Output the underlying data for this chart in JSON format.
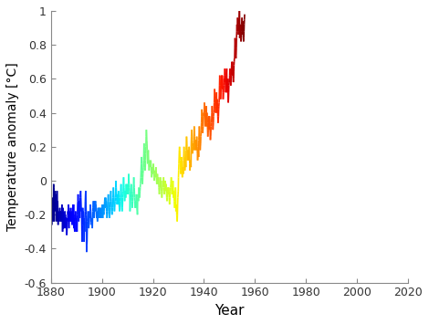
{
  "xlabel": "Year",
  "ylabel": "Temperature anomaly [°C]",
  "xlim": [
    1880,
    2020
  ],
  "ylim": [
    -0.6,
    1.0
  ],
  "yticks": [
    -0.6,
    -0.4,
    -0.2,
    0,
    0.2,
    0.4,
    0.6,
    0.8,
    1
  ],
  "ytick_labels": [
    "-0.6",
    "-0.4",
    "-0.2",
    "0",
    "0.2",
    "0.4",
    "0.6",
    "0.8",
    "1"
  ],
  "xticks": [
    1880,
    1900,
    1920,
    1940,
    1960,
    1980,
    2000,
    2020
  ],
  "linewidth": 1.2,
  "background_color": "#ffffff",
  "monthly_anomalies": [
    -0.2,
    -0.12,
    -0.1,
    -0.18,
    -0.26,
    -0.16,
    -0.12,
    -0.14,
    -0.1,
    -0.22,
    -0.24,
    -0.16,
    -0.14,
    -0.02,
    -0.04,
    -0.14,
    -0.24,
    -0.12,
    -0.08,
    -0.12,
    -0.06,
    -0.12,
    -0.18,
    -0.16,
    -0.12,
    -0.08,
    -0.16,
    -0.24,
    -0.16,
    -0.06,
    -0.12,
    -0.14,
    -0.12,
    -0.2,
    -0.26,
    -0.18,
    -0.22,
    -0.2,
    -0.22,
    -0.24,
    -0.22,
    -0.18,
    -0.16,
    -0.22,
    -0.18,
    -0.22,
    -0.24,
    -0.2,
    -0.18,
    -0.2,
    -0.24,
    -0.18,
    -0.14,
    -0.18,
    -0.22,
    -0.3,
    -0.24,
    -0.16,
    -0.18,
    -0.28,
    -0.28,
    -0.22,
    -0.26,
    -0.28,
    -0.26,
    -0.22,
    -0.18,
    -0.26,
    -0.2,
    -0.28,
    -0.24,
    -0.22,
    -0.22,
    -0.26,
    -0.32,
    -0.32,
    -0.28,
    -0.24,
    -0.22,
    -0.24,
    -0.18,
    -0.2,
    -0.16,
    -0.14,
    -0.26,
    -0.28,
    -0.24,
    -0.22,
    -0.18,
    -0.22,
    -0.2,
    -0.24,
    -0.18,
    -0.16,
    -0.18,
    -0.24,
    -0.2,
    -0.18,
    -0.22,
    -0.2,
    -0.26,
    -0.22,
    -0.16,
    -0.18,
    -0.14,
    -0.18,
    -0.22,
    -0.14,
    -0.28,
    -0.22,
    -0.24,
    -0.28,
    -0.3,
    -0.24,
    -0.2,
    -0.22,
    -0.18,
    -0.22,
    -0.26,
    -0.3,
    -0.26,
    -0.22,
    -0.28,
    -0.3,
    -0.24,
    -0.2,
    -0.14,
    -0.12,
    -0.08,
    -0.12,
    -0.18,
    -0.24,
    -0.2,
    -0.14,
    -0.12,
    -0.16,
    -0.22,
    -0.16,
    -0.1,
    -0.08,
    -0.06,
    -0.1,
    -0.14,
    -0.18,
    -0.16,
    -0.22,
    -0.3,
    -0.36,
    -0.26,
    -0.2,
    -0.16,
    -0.2,
    -0.18,
    -0.22,
    -0.26,
    -0.22,
    -0.36,
    -0.28,
    -0.24,
    -0.3,
    -0.22,
    -0.18,
    -0.12,
    -0.08,
    -0.06,
    -0.14,
    -0.2,
    -0.28,
    -0.42,
    -0.38,
    -0.36,
    -0.28,
    -0.24,
    -0.22,
    -0.2,
    -0.18,
    -0.22,
    -0.26,
    -0.28,
    -0.26,
    -0.26,
    -0.22,
    -0.18,
    -0.2,
    -0.22,
    -0.18,
    -0.14,
    -0.18,
    -0.2,
    -0.24,
    -0.22,
    -0.26,
    -0.26,
    -0.22,
    -0.24,
    -0.28,
    -0.22,
    -0.18,
    -0.16,
    -0.14,
    -0.12,
    -0.16,
    -0.18,
    -0.22,
    -0.16,
    -0.14,
    -0.12,
    -0.14,
    -0.18,
    -0.14,
    -0.12,
    -0.16,
    -0.14,
    -0.18,
    -0.2,
    -0.22,
    -0.22,
    -0.18,
    -0.22,
    -0.24,
    -0.22,
    -0.18,
    -0.16,
    -0.2,
    -0.22,
    -0.18,
    -0.16,
    -0.18,
    -0.18,
    -0.16,
    -0.2,
    -0.22,
    -0.2,
    -0.18,
    -0.16,
    -0.18,
    -0.2,
    -0.22,
    -0.2,
    -0.16,
    -0.18,
    -0.16,
    -0.14,
    -0.18,
    -0.22,
    -0.18,
    -0.14,
    -0.16,
    -0.18,
    -0.2,
    -0.18,
    -0.14,
    -0.14,
    -0.12,
    -0.1,
    -0.12,
    -0.16,
    -0.12,
    -0.1,
    -0.14,
    -0.12,
    -0.16,
    -0.18,
    -0.2,
    -0.22,
    -0.2,
    -0.18,
    -0.14,
    -0.12,
    -0.1,
    -0.08,
    -0.12,
    -0.14,
    -0.18,
    -0.2,
    -0.22,
    -0.22,
    -0.2,
    -0.16,
    -0.14,
    -0.12,
    -0.08,
    -0.06,
    -0.1,
    -0.12,
    -0.16,
    -0.18,
    -0.2,
    -0.2,
    -0.18,
    -0.16,
    -0.14,
    -0.1,
    -0.08,
    -0.04,
    -0.08,
    -0.1,
    -0.14,
    -0.16,
    -0.18,
    -0.16,
    -0.14,
    -0.12,
    -0.1,
    -0.08,
    -0.04,
    0.0,
    -0.04,
    -0.06,
    -0.1,
    -0.12,
    -0.14,
    -0.12,
    -0.1,
    -0.08,
    -0.1,
    -0.14,
    -0.1,
    -0.06,
    -0.08,
    -0.1,
    -0.14,
    -0.16,
    -0.18,
    -0.18,
    -0.16,
    -0.12,
    -0.1,
    -0.08,
    -0.04,
    -0.02,
    -0.06,
    -0.1,
    -0.14,
    -0.16,
    -0.18,
    -0.16,
    -0.14,
    -0.1,
    -0.08,
    -0.06,
    -0.02,
    0.02,
    -0.02,
    -0.04,
    -0.08,
    -0.1,
    -0.12,
    -0.1,
    -0.08,
    -0.06,
    -0.08,
    -0.1,
    -0.06,
    -0.02,
    -0.04,
    -0.06,
    -0.08,
    -0.06,
    -0.04,
    -0.02,
    -0.04,
    -0.06,
    -0.08,
    -0.06,
    -0.02,
    0.04,
    0.0,
    -0.02,
    -0.04,
    -0.06,
    -0.08,
    -0.18,
    -0.16,
    -0.12,
    -0.1,
    -0.08,
    -0.04,
    -0.02,
    -0.06,
    -0.08,
    -0.12,
    -0.14,
    -0.16,
    -0.14,
    -0.12,
    -0.1,
    -0.08,
    -0.06,
    -0.02,
    0.02,
    -0.02,
    -0.04,
    -0.08,
    -0.1,
    -0.12,
    -0.16,
    -0.14,
    -0.12,
    -0.14,
    -0.16,
    -0.12,
    -0.08,
    -0.1,
    -0.12,
    -0.16,
    -0.18,
    -0.2,
    -0.12,
    -0.1,
    -0.08,
    -0.1,
    -0.12,
    -0.08,
    -0.04,
    -0.06,
    -0.08,
    -0.1,
    -0.08,
    -0.06,
    -0.04,
    -0.02,
    0.0,
    0.02,
    0.06,
    0.1,
    0.14,
    0.1,
    0.06,
    0.02,
    0.0,
    -0.02,
    0.02,
    0.04,
    0.06,
    0.08,
    0.12,
    0.16,
    0.22,
    0.18,
    0.14,
    0.1,
    0.08,
    0.06,
    0.08,
    0.12,
    0.16,
    0.2,
    0.26,
    0.3,
    0.28,
    0.24,
    0.22,
    0.18,
    0.14,
    0.1,
    0.14,
    0.16,
    0.18,
    0.14,
    0.1,
    0.08,
    0.06,
    0.08,
    0.1,
    0.12,
    0.1,
    0.08,
    0.08,
    0.1,
    0.12,
    0.1,
    0.06,
    0.04,
    0.02,
    0.04,
    0.06,
    0.08,
    0.06,
    0.04,
    0.06,
    0.08,
    0.1,
    0.08,
    0.04,
    0.02,
    0.0,
    0.02,
    0.04,
    0.06,
    0.04,
    0.02,
    0.04,
    0.06,
    0.08,
    0.06,
    0.02,
    0.0,
    -0.02,
    0.0,
    0.02,
    0.04,
    0.02,
    0.0,
    -0.02,
    0.0,
    0.02,
    0.0,
    -0.04,
    -0.06,
    -0.08,
    -0.06,
    -0.04,
    -0.02,
    0.0,
    0.02,
    -0.04,
    -0.02,
    0.0,
    -0.02,
    -0.06,
    -0.08,
    -0.1,
    -0.08,
    -0.06,
    -0.04,
    -0.02,
    0.0,
    -0.02,
    0.0,
    0.02,
    0.0,
    -0.04,
    -0.06,
    -0.08,
    -0.06,
    -0.04,
    -0.02,
    0.0,
    -0.02,
    -0.06,
    -0.04,
    -0.02,
    -0.04,
    -0.08,
    -0.1,
    -0.12,
    -0.1,
    -0.08,
    -0.06,
    -0.04,
    -0.06,
    -0.08,
    -0.06,
    -0.04,
    -0.06,
    -0.1,
    -0.12,
    -0.14,
    -0.12,
    -0.1,
    -0.08,
    -0.06,
    -0.04,
    -0.02,
    0.0,
    0.02,
    0.0,
    -0.04,
    -0.06,
    -0.08,
    -0.06,
    -0.04,
    -0.02,
    0.0,
    -0.02,
    -0.1,
    -0.08,
    -0.06,
    -0.08,
    -0.12,
    -0.14,
    -0.16,
    -0.12,
    -0.08,
    -0.06,
    -0.04,
    -0.06,
    -0.18,
    -0.16,
    -0.14,
    -0.16,
    -0.2,
    -0.22,
    -0.24,
    -0.2,
    -0.14,
    -0.1,
    -0.08,
    -0.06,
    0.02,
    0.06,
    0.1,
    0.14,
    0.18,
    0.2,
    0.18,
    0.14,
    0.12,
    0.08,
    0.06,
    0.04,
    0.06,
    0.1,
    0.14,
    0.12,
    0.08,
    0.04,
    0.02,
    0.04,
    0.06,
    0.08,
    0.06,
    0.04,
    0.12,
    0.16,
    0.2,
    0.18,
    0.14,
    0.1,
    0.06,
    0.08,
    0.1,
    0.12,
    0.1,
    0.08,
    0.18,
    0.22,
    0.26,
    0.24,
    0.2,
    0.16,
    0.12,
    0.14,
    0.16,
    0.18,
    0.16,
    0.14,
    0.12,
    0.16,
    0.2,
    0.18,
    0.14,
    0.1,
    0.06,
    0.08,
    0.1,
    0.12,
    0.1,
    0.08,
    0.22,
    0.26,
    0.3,
    0.28,
    0.24,
    0.2,
    0.16,
    0.18,
    0.2,
    0.22,
    0.2,
    0.18,
    0.24,
    0.28,
    0.32,
    0.3,
    0.26,
    0.22,
    0.18,
    0.2,
    0.22,
    0.24,
    0.22,
    0.2,
    0.18,
    0.22,
    0.26,
    0.24,
    0.2,
    0.16,
    0.12,
    0.14,
    0.16,
    0.18,
    0.16,
    0.14,
    0.24,
    0.28,
    0.32,
    0.3,
    0.26,
    0.22,
    0.18,
    0.2,
    0.22,
    0.26,
    0.28,
    0.3,
    0.34,
    0.38,
    0.42,
    0.4,
    0.36,
    0.32,
    0.28,
    0.3,
    0.32,
    0.36,
    0.38,
    0.4,
    0.38,
    0.42,
    0.46,
    0.44,
    0.4,
    0.36,
    0.32,
    0.34,
    0.36,
    0.4,
    0.42,
    0.44,
    0.32,
    0.36,
    0.4,
    0.38,
    0.34,
    0.3,
    0.26,
    0.28,
    0.3,
    0.34,
    0.36,
    0.38,
    0.3,
    0.34,
    0.38,
    0.36,
    0.32,
    0.28,
    0.24,
    0.26,
    0.28,
    0.32,
    0.34,
    0.36,
    0.36,
    0.4,
    0.44,
    0.42,
    0.38,
    0.34,
    0.3,
    0.32,
    0.34,
    0.38,
    0.4,
    0.42,
    0.46,
    0.5,
    0.54,
    0.52,
    0.48,
    0.44,
    0.4,
    0.42,
    0.44,
    0.48,
    0.5,
    0.52,
    0.4,
    0.44,
    0.48,
    0.46,
    0.42,
    0.38,
    0.34,
    0.36,
    0.38,
    0.42,
    0.44,
    0.46,
    0.5,
    0.56,
    0.62,
    0.6,
    0.56,
    0.52,
    0.48,
    0.5,
    0.54,
    0.58,
    0.6,
    0.62,
    0.54,
    0.58,
    0.62,
    0.6,
    0.56,
    0.52,
    0.48,
    0.5,
    0.52,
    0.56,
    0.58,
    0.6,
    0.58,
    0.62,
    0.66,
    0.64,
    0.6,
    0.56,
    0.52,
    0.54,
    0.58,
    0.62,
    0.64,
    0.66,
    0.52,
    0.56,
    0.6,
    0.58,
    0.54,
    0.5,
    0.46,
    0.48,
    0.52,
    0.56,
    0.58,
    0.6,
    0.58,
    0.62,
    0.66,
    0.64,
    0.6,
    0.58,
    0.56,
    0.58,
    0.62,
    0.66,
    0.68,
    0.7,
    0.62,
    0.66,
    0.7,
    0.68,
    0.64,
    0.6,
    0.58,
    0.6,
    0.64,
    0.68,
    0.7,
    0.72,
    0.72,
    0.78,
    0.84,
    0.82,
    0.78,
    0.74,
    0.72,
    0.74,
    0.78,
    0.84,
    0.88,
    0.92,
    0.88,
    0.92,
    0.96,
    0.94,
    0.9,
    0.88,
    0.86,
    0.88,
    0.92,
    0.96,
    1.0,
    1.04,
    0.84,
    0.88,
    0.92,
    0.9,
    0.86,
    0.84,
    0.82,
    0.84,
    0.88,
    0.92,
    0.94,
    0.96,
    0.86,
    0.9,
    0.94,
    0.92,
    0.88,
    0.84,
    0.82,
    0.84,
    0.88,
    0.92,
    0.95,
    0.98
  ]
}
